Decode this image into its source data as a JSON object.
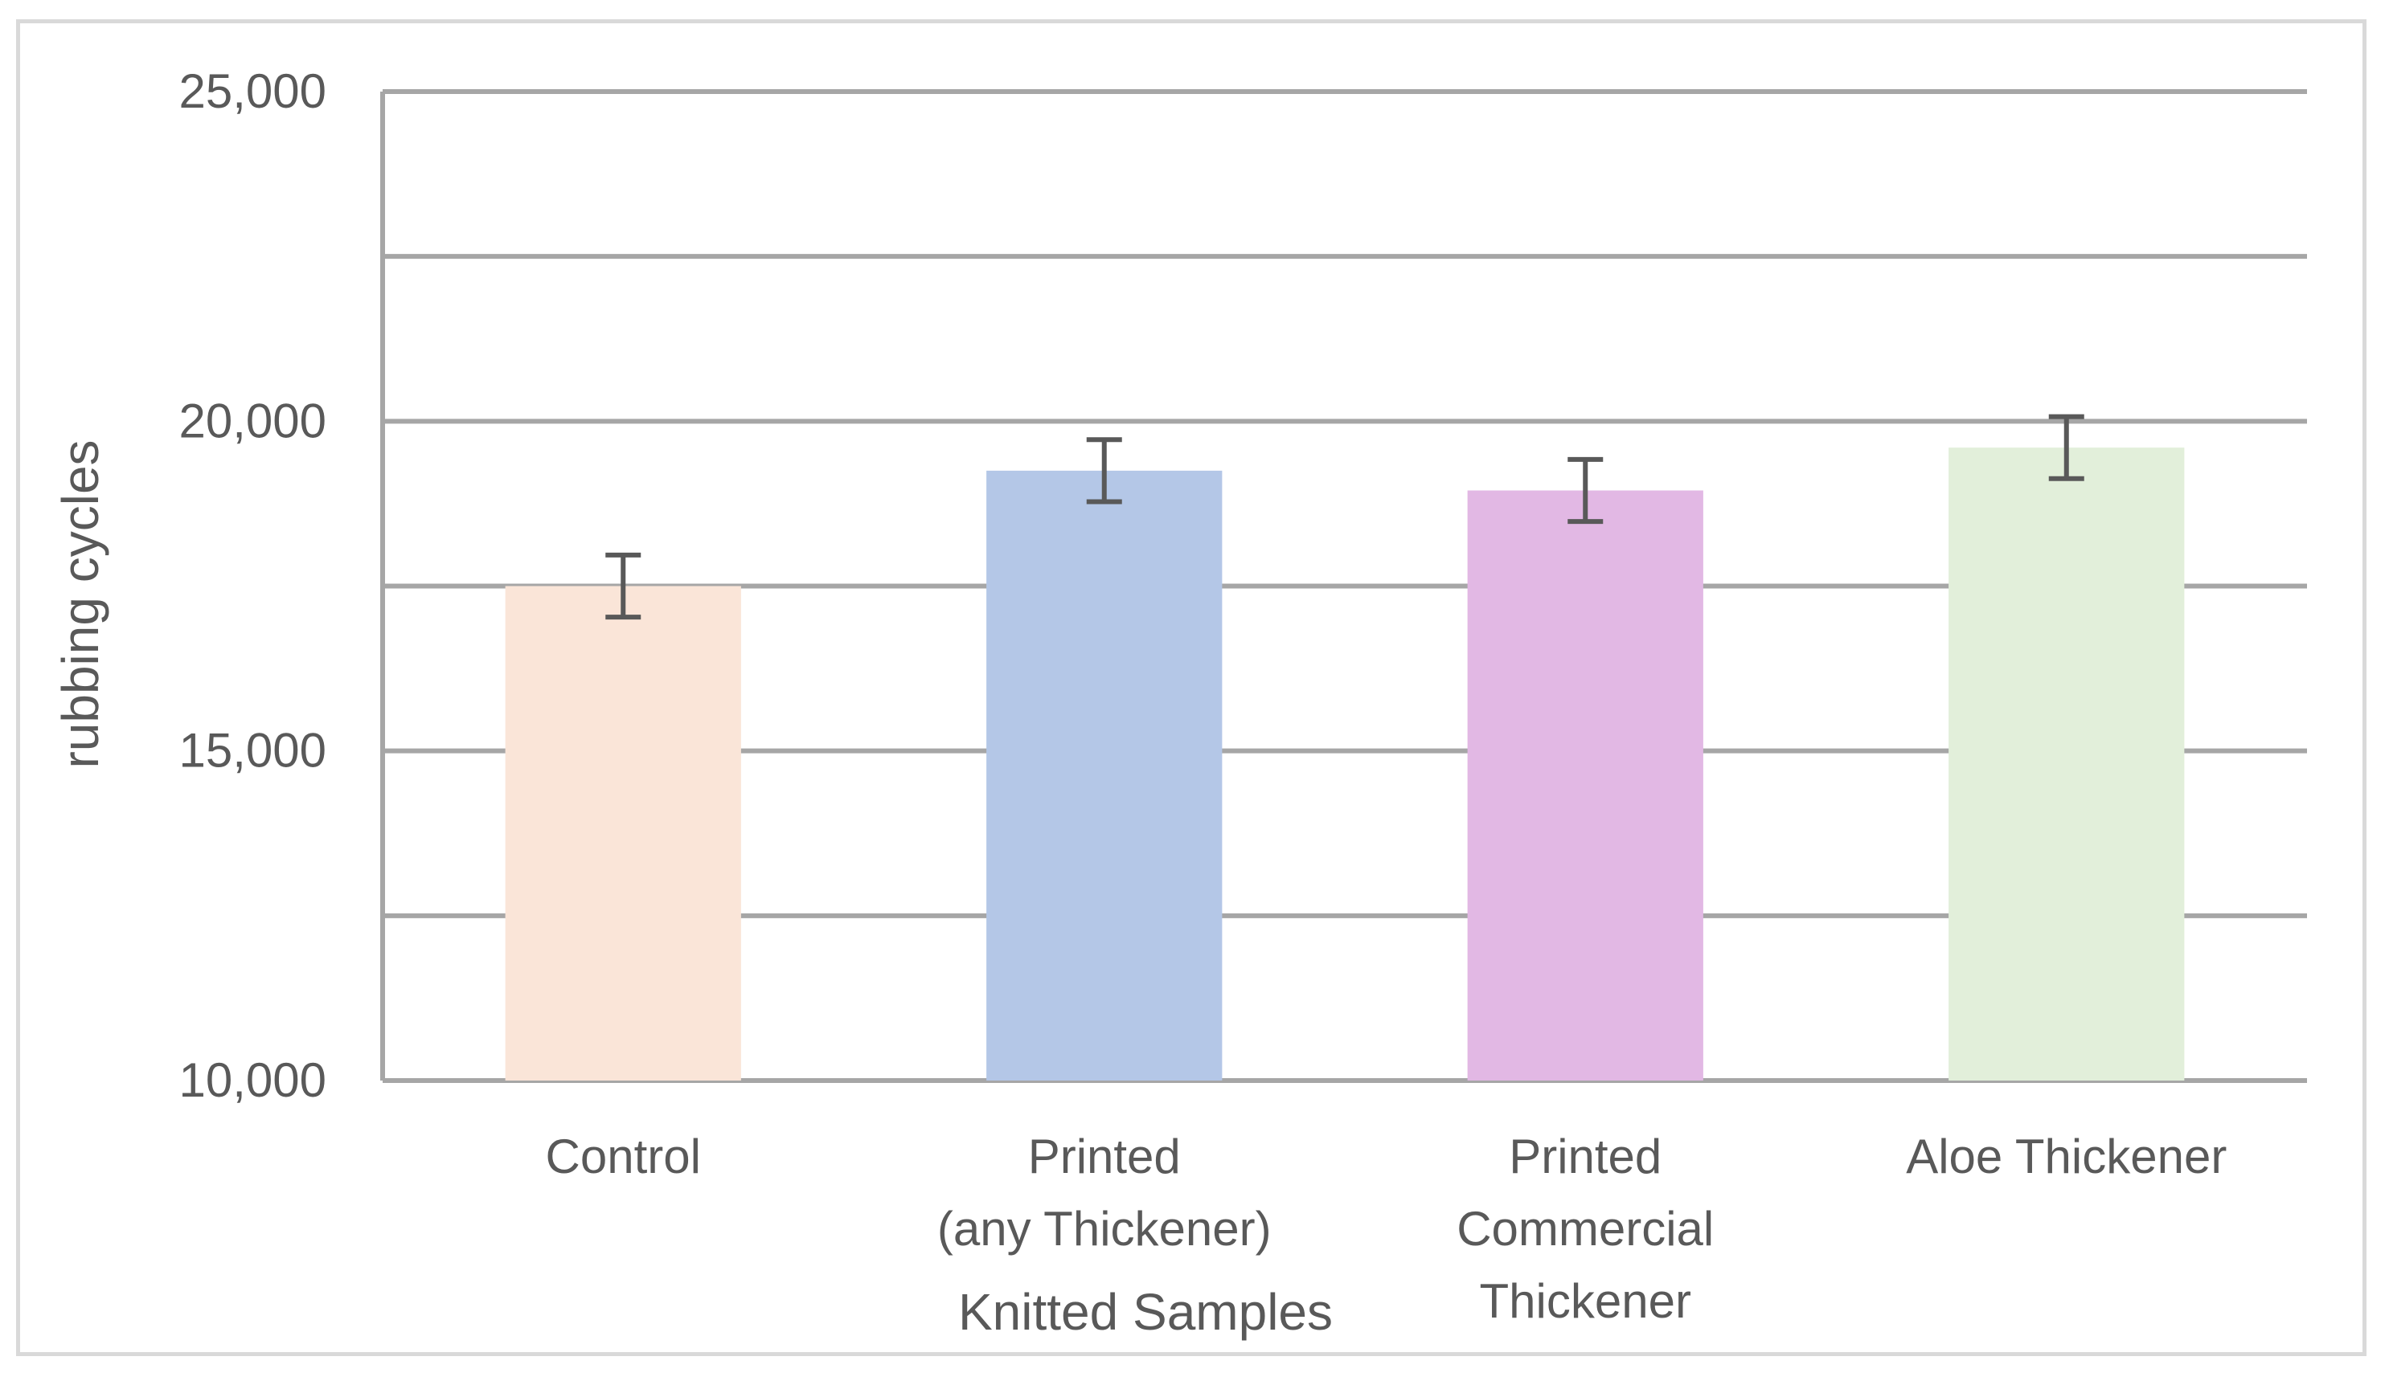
{
  "chart_data": {
    "type": "bar",
    "title": "",
    "xlabel": "Knitted Samples",
    "ylabel": "rubbing cycles",
    "ylim": [
      10000,
      25000
    ],
    "yticks": [
      10000,
      12500,
      15000,
      17500,
      20000,
      22500,
      25000
    ],
    "ytick_labels": [
      "10,000",
      "",
      "15,000",
      "",
      "20,000",
      "",
      "25,000"
    ],
    "grid": true,
    "legend": "none",
    "categories": [
      {
        "lines": [
          "Control"
        ]
      },
      {
        "lines": [
          "Printed",
          "(any Thickener)"
        ]
      },
      {
        "lines": [
          "Printed",
          "Commercial",
          "Thickener"
        ]
      },
      {
        "lines": [
          "Aloe Thickener"
        ]
      }
    ],
    "values": [
      17500,
      19250,
      18950,
      19600
    ],
    "errors": [
      470,
      470,
      470,
      470
    ],
    "colors": [
      "#fae5d8",
      "#b4c7e7",
      "#e2b8e4",
      "#e2efda"
    ]
  }
}
